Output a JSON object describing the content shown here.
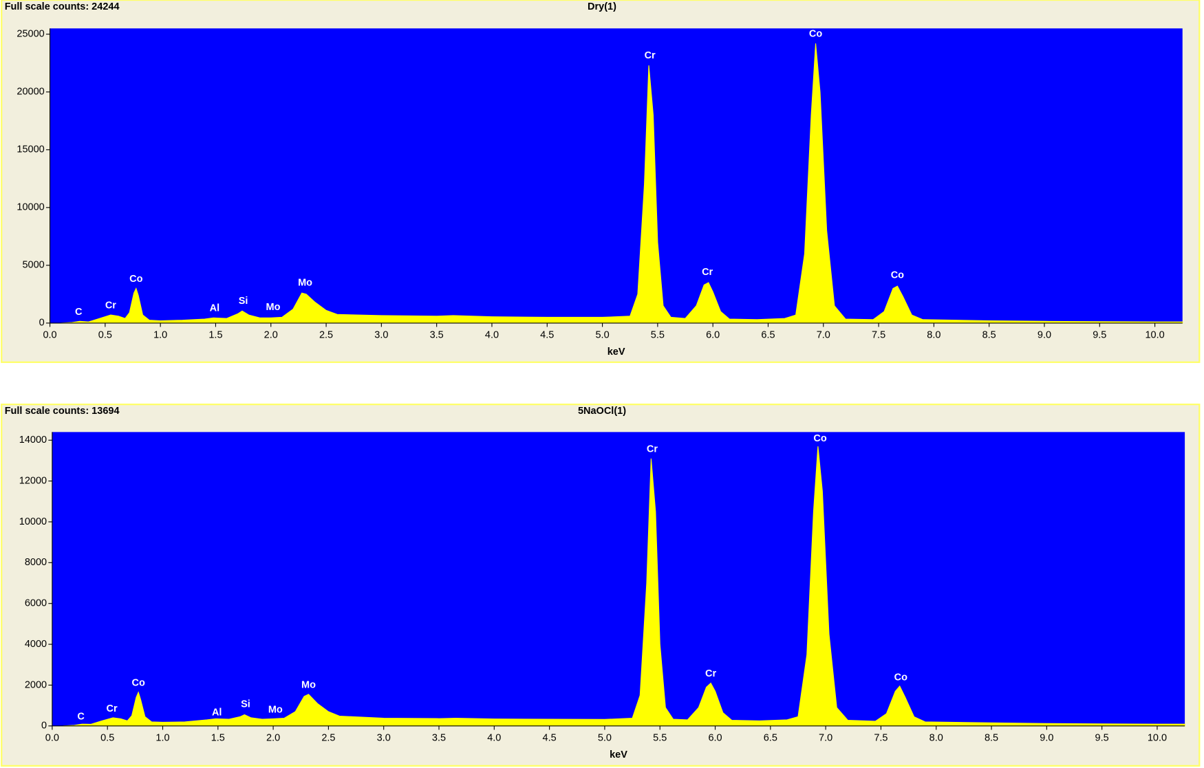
{
  "chart_data": [
    {
      "type": "area",
      "title": "Dry(1)",
      "subtitle": "Full scale counts: 24244",
      "xlabel": "keV",
      "color": "#ffff00",
      "background": "#0000ff",
      "x": [
        0.1,
        0.2,
        0.27,
        0.35,
        0.45,
        0.55,
        0.62,
        0.68,
        0.72,
        0.76,
        0.78,
        0.8,
        0.84,
        0.9,
        1.0,
        1.2,
        1.4,
        1.48,
        1.6,
        1.7,
        1.74,
        1.8,
        1.9,
        2.0,
        2.1,
        2.2,
        2.28,
        2.32,
        2.4,
        2.5,
        2.6,
        3.0,
        3.5,
        3.65,
        4.0,
        4.5,
        5.0,
        5.25,
        5.32,
        5.38,
        5.42,
        5.46,
        5.5,
        5.55,
        5.62,
        5.75,
        5.85,
        5.92,
        5.96,
        6.0,
        6.07,
        6.15,
        6.4,
        6.65,
        6.75,
        6.83,
        6.89,
        6.93,
        6.97,
        7.03,
        7.1,
        7.2,
        7.45,
        7.55,
        7.63,
        7.67,
        7.72,
        7.8,
        7.9,
        8.5,
        9.0,
        9.5,
        10.0,
        10.25
      ],
      "values": [
        0,
        50,
        150,
        100,
        400,
        700,
        600,
        400,
        900,
        2600,
        3000,
        2400,
        700,
        250,
        200,
        250,
        350,
        450,
        400,
        800,
        1050,
        700,
        450,
        450,
        500,
        1200,
        2600,
        2500,
        1800,
        1100,
        750,
        650,
        600,
        650,
        550,
        500,
        500,
        600,
        2500,
        12000,
        22300,
        18000,
        7000,
        1500,
        500,
        400,
        1500,
        3300,
        3500,
        2700,
        1000,
        350,
        300,
        400,
        700,
        6000,
        18000,
        24200,
        20000,
        8000,
        1500,
        350,
        300,
        1000,
        3000,
        3200,
        2300,
        700,
        300,
        200,
        150,
        120,
        100,
        100
      ],
      "xlim": [
        0,
        10.25
      ],
      "ylim": [
        0,
        25500
      ],
      "xticks": [
        {
          "value": 0,
          "label": "0.0"
        },
        0.5,
        {
          "value": 1,
          "label": "1.0"
        },
        1.5,
        {
          "value": 2,
          "label": "2.0"
        },
        2.5,
        {
          "value": 3,
          "label": "3.0"
        },
        3.5,
        {
          "value": 4,
          "label": "4.0"
        },
        4.5,
        {
          "value": 5,
          "label": "5.0"
        },
        5.5,
        {
          "value": 6,
          "label": "6.0"
        },
        6.5,
        {
          "value": 7,
          "label": "7.0"
        },
        7.5,
        {
          "value": 8,
          "label": "8.0"
        },
        8.5,
        {
          "value": 9,
          "label": "9.0"
        },
        9.5,
        {
          "value": 10,
          "label": "10.0"
        }
      ],
      "yticks": [
        0,
        5000,
        10000,
        15000,
        20000,
        25000
      ],
      "annotations": [
        {
          "text": "C",
          "x": 0.26,
          "y": 928
        },
        {
          "text": "Cr",
          "x": 0.55,
          "y": 1500
        },
        {
          "text": "Co",
          "x": 0.78,
          "y": 3800
        },
        {
          "text": "Al",
          "x": 1.49,
          "y": 1250
        },
        {
          "text": "Si",
          "x": 1.75,
          "y": 1900
        },
        {
          "text": "Mo",
          "x": 2.02,
          "y": 1350
        },
        {
          "text": "Mo",
          "x": 2.31,
          "y": 3450
        },
        {
          "text": "Cr",
          "x": 5.43,
          "y": 23143
        },
        {
          "text": "Co",
          "x": 6.93,
          "y": 25000
        },
        {
          "text": "Cr",
          "x": 5.95,
          "y": 4377
        },
        {
          "text": "Co",
          "x": 7.67,
          "y": 4111
        }
      ]
    },
    {
      "type": "area",
      "title": "5NaOCl(1)",
      "subtitle": "Full scale counts: 13694",
      "xlabel": "keV",
      "color": "#ffff00",
      "background": "#0000ff",
      "x": [
        0.1,
        0.2,
        0.27,
        0.35,
        0.45,
        0.55,
        0.62,
        0.68,
        0.72,
        0.76,
        0.78,
        0.8,
        0.84,
        0.9,
        1.0,
        1.2,
        1.4,
        1.48,
        1.6,
        1.7,
        1.74,
        1.8,
        1.9,
        2.0,
        2.1,
        2.2,
        2.28,
        2.32,
        2.4,
        2.5,
        2.6,
        3.0,
        3.5,
        3.65,
        4.0,
        4.5,
        5.0,
        5.25,
        5.32,
        5.38,
        5.42,
        5.46,
        5.5,
        5.55,
        5.62,
        5.75,
        5.85,
        5.92,
        5.96,
        6.0,
        6.07,
        6.15,
        6.4,
        6.65,
        6.75,
        6.83,
        6.89,
        6.93,
        6.97,
        7.03,
        7.1,
        7.2,
        7.45,
        7.55,
        7.63,
        7.67,
        7.72,
        7.8,
        7.9,
        8.5,
        9.0,
        9.5,
        10.0,
        10.25
      ],
      "values": [
        0,
        30,
        90,
        80,
        250,
        400,
        350,
        250,
        500,
        1400,
        1650,
        1300,
        450,
        200,
        180,
        200,
        300,
        350,
        330,
        450,
        550,
        400,
        330,
        350,
        380,
        700,
        1450,
        1550,
        1100,
        700,
        480,
        380,
        360,
        380,
        340,
        330,
        320,
        380,
        1500,
        7000,
        13100,
        10500,
        4000,
        900,
        330,
        300,
        900,
        1900,
        2100,
        1700,
        650,
        280,
        250,
        300,
        450,
        3500,
        10500,
        13700,
        11500,
        4500,
        900,
        280,
        230,
        600,
        1700,
        1950,
        1400,
        450,
        200,
        150,
        120,
        100,
        90,
        90
      ],
      "xlim": [
        0,
        10.25
      ],
      "ylim": [
        0,
        14400
      ],
      "xticks": [
        {
          "value": 0,
          "label": "0.0"
        },
        0.5,
        {
          "value": 1,
          "label": "1.0"
        },
        1.5,
        {
          "value": 2,
          "label": "2.0"
        },
        2.5,
        {
          "value": 3,
          "label": "3.0"
        },
        3.5,
        {
          "value": 4,
          "label": "4.0"
        },
        4.5,
        {
          "value": 5,
          "label": "5.0"
        },
        5.5,
        {
          "value": 6,
          "label": "6.0"
        },
        6.5,
        {
          "value": 7,
          "label": "7.0"
        },
        7.5,
        {
          "value": 8,
          "label": "8.0"
        },
        8.5,
        {
          "value": 9,
          "label": "9.0"
        },
        9.5,
        {
          "value": 10,
          "label": "10.0"
        }
      ],
      "yticks": [
        0,
        2000,
        4000,
        6000,
        8000,
        10000,
        12000,
        14000
      ],
      "annotations": [
        {
          "text": "C",
          "x": 0.26,
          "y": 450
        },
        {
          "text": "Cr",
          "x": 0.54,
          "y": 826
        },
        {
          "text": "Co",
          "x": 0.78,
          "y": 2100
        },
        {
          "text": "Al",
          "x": 1.49,
          "y": 638
        },
        {
          "text": "Si",
          "x": 1.75,
          "y": 1050
        },
        {
          "text": "Mo",
          "x": 2.02,
          "y": 788
        },
        {
          "text": "Mo",
          "x": 2.32,
          "y": 1990
        },
        {
          "text": "Cr",
          "x": 5.43,
          "y": 13550
        },
        {
          "text": "Co",
          "x": 6.95,
          "y": 14075
        },
        {
          "text": "Cr",
          "x": 5.96,
          "y": 2550
        },
        {
          "text": "Co",
          "x": 7.68,
          "y": 2365
        }
      ]
    }
  ]
}
